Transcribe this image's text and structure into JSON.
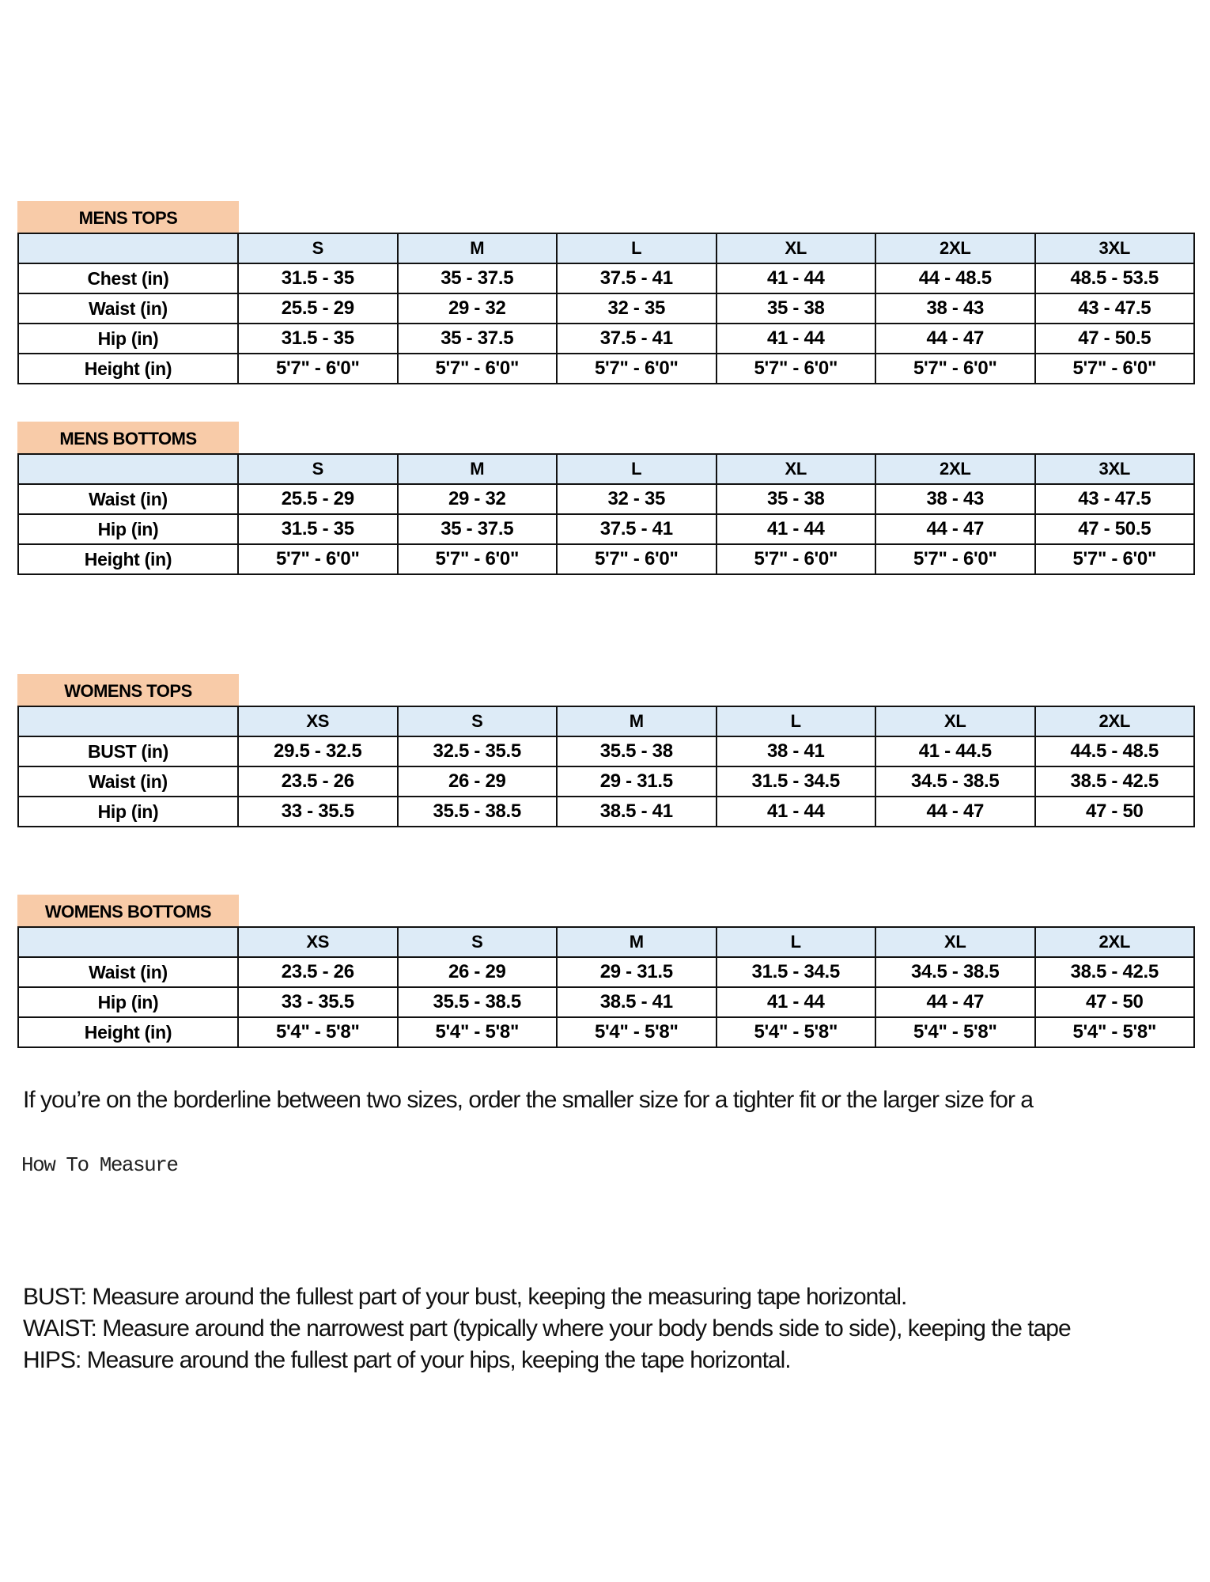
{
  "colors": {
    "section_label_bg": "#f8cba8",
    "header_row_bg": "#ddebf7"
  },
  "tables": [
    {
      "title": "MENS TOPS",
      "sizes": [
        "S",
        "M",
        "L",
        "XL",
        "2XL",
        "3XL"
      ],
      "rows": [
        {
          "label": "Chest (in)",
          "values": [
            "31.5 - 35",
            "35 - 37.5",
            "37.5 - 41",
            "41 - 44",
            "44 - 48.5",
            "48.5 - 53.5"
          ]
        },
        {
          "label": "Waist (in)",
          "values": [
            "25.5 - 29",
            "29 - 32",
            "32 - 35",
            "35 - 38",
            "38 - 43",
            "43 - 47.5"
          ]
        },
        {
          "label": "Hip (in)",
          "values": [
            "31.5 - 35",
            "35 - 37.5",
            "37.5 - 41",
            "41 - 44",
            "44 - 47",
            "47 - 50.5"
          ]
        },
        {
          "label": "Height (in)",
          "values": [
            "5'7\" - 6'0\"",
            "5'7\" - 6'0\"",
            "5'7\" - 6'0\"",
            "5'7\" - 6'0\"",
            "5'7\" - 6'0\"",
            "5'7\" - 6'0\""
          ]
        }
      ]
    },
    {
      "title": "MENS BOTTOMS",
      "sizes": [
        "S",
        "M",
        "L",
        "XL",
        "2XL",
        "3XL"
      ],
      "rows": [
        {
          "label": "Waist (in)",
          "values": [
            "25.5 - 29",
            "29 - 32",
            "32 - 35",
            "35 - 38",
            "38 - 43",
            "43 - 47.5"
          ]
        },
        {
          "label": "Hip (in)",
          "values": [
            "31.5 - 35",
            "35 - 37.5",
            "37.5 - 41",
            "41 - 44",
            "44 - 47",
            "47 - 50.5"
          ]
        },
        {
          "label": "Height (in)",
          "values": [
            "5'7\" - 6'0\"",
            "5'7\" - 6'0\"",
            "5'7\" - 6'0\"",
            "5'7\" - 6'0\"",
            "5'7\" - 6'0\"",
            "5'7\" - 6'0\""
          ]
        }
      ]
    },
    {
      "title": "WOMENS TOPS",
      "sizes": [
        "XS",
        "S",
        "M",
        "L",
        "XL",
        "2XL"
      ],
      "rows": [
        {
          "label": "BUST (in)",
          "values": [
            "29.5 - 32.5",
            "32.5 - 35.5",
            "35.5 - 38",
            "38 - 41",
            "41 - 44.5",
            "44.5 - 48.5"
          ]
        },
        {
          "label": "Waist (in)",
          "values": [
            "23.5 - 26",
            "26 - 29",
            "29 - 31.5",
            "31.5 - 34.5",
            "34.5 - 38.5",
            "38.5 - 42.5"
          ]
        },
        {
          "label": "Hip (in)",
          "values": [
            "33 - 35.5",
            "35.5 - 38.5",
            "38.5 - 41",
            "41 - 44",
            "44 - 47",
            "47 - 50"
          ]
        }
      ]
    },
    {
      "title": "WOMENS BOTTOMS",
      "sizes": [
        "XS",
        "S",
        "M",
        "L",
        "XL",
        "2XL"
      ],
      "rows": [
        {
          "label": "Waist (in)",
          "values": [
            "23.5 - 26",
            "26 - 29",
            "29 - 31.5",
            "31.5 - 34.5",
            "34.5 - 38.5",
            "38.5 - 42.5"
          ]
        },
        {
          "label": "Hip (in)",
          "values": [
            "33 - 35.5",
            "35.5 - 38.5",
            "38.5 - 41",
            "41 - 44",
            "44 - 47",
            "47 - 50"
          ]
        },
        {
          "label": "Height (in)",
          "values": [
            "5'4\" - 5'8\"",
            "5'4\" - 5'8\"",
            "5'4\" - 5'8\"",
            "5'4\" - 5'8\"",
            "5'4\" - 5'8\"",
            "5'4\" - 5'8\""
          ]
        }
      ]
    }
  ],
  "note": "If you’re on the borderline between two sizes, order the smaller size for a tighter fit or the larger size for a",
  "how_to_measure": "How To Measure",
  "definitions": [
    "BUST: Measure around the fullest part of your bust, keeping the measuring tape horizontal.",
    "WAIST: Measure around the narrowest part (typically where your body bends side to side), keeping the tape",
    "HIPS: Measure around the fullest part of your hips, keeping the tape horizontal."
  ]
}
